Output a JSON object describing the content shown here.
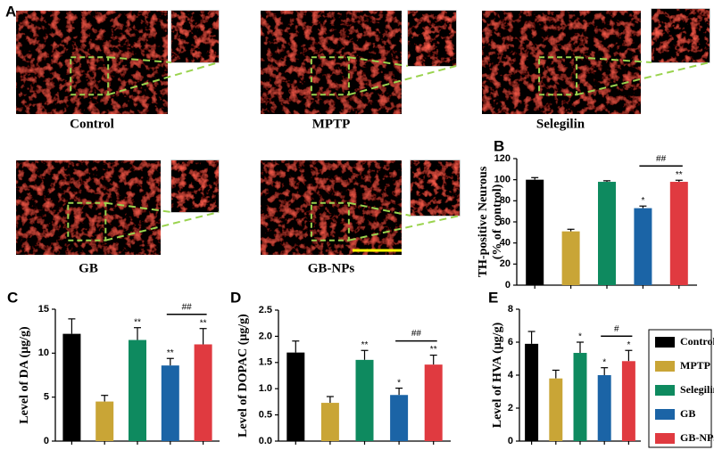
{
  "images": {
    "label": "A",
    "captions": [
      "Control",
      "MPTP",
      "Selegilin",
      "GB",
      "GB-NPs"
    ]
  },
  "legend": [
    {
      "name": "Control",
      "color": "#000000"
    },
    {
      "name": "MPTP",
      "color": "#c9a536"
    },
    {
      "name": "Selegilin",
      "color": "#0e8a5f"
    },
    {
      "name": "GB",
      "color": "#1b64a6"
    },
    {
      "name": "GB-NPs",
      "color": "#e03a40"
    }
  ],
  "chart_data": [
    {
      "type": "bar",
      "label": "B",
      "ylabel": [
        "TH-positive Neurous",
        "(% of control)"
      ],
      "values": [
        100,
        51,
        98,
        73,
        98
      ],
      "errors": [
        2,
        2,
        1,
        2,
        1.5
      ],
      "stars": [
        null,
        null,
        null,
        "*",
        "**"
      ],
      "bracket_label": "##",
      "ylim": [
        0,
        120
      ],
      "yticks": [
        0,
        20,
        40,
        60,
        80,
        100,
        120
      ]
    },
    {
      "type": "bar",
      "label": "C",
      "ylabel": [
        "Level of DA (μg/g)"
      ],
      "values": [
        12.2,
        4.5,
        11.5,
        8.6,
        11.0
      ],
      "errors": [
        1.7,
        0.7,
        1.4,
        0.8,
        1.8
      ],
      "stars": [
        null,
        null,
        "**",
        "**",
        "**"
      ],
      "bracket_label": "##",
      "ylim": [
        0,
        15
      ],
      "yticks": [
        0,
        5,
        10,
        15
      ]
    },
    {
      "type": "bar",
      "label": "D",
      "ylabel": [
        "Level of DOPAC (μg/g)"
      ],
      "values": [
        1.69,
        0.73,
        1.55,
        0.88,
        1.46
      ],
      "errors": [
        0.22,
        0.12,
        0.18,
        0.13,
        0.18
      ],
      "stars": [
        null,
        null,
        "**",
        "*",
        "**"
      ],
      "bracket_label": "##",
      "ylim": [
        0,
        2.5
      ],
      "yticks": [
        {
          "value": 0,
          "label": "0.0"
        },
        0.5,
        {
          "value": 1,
          "label": "1.0"
        },
        1.5,
        {
          "value": 2,
          "label": "2.0"
        },
        2.5
      ]
    },
    {
      "type": "bar",
      "label": "E",
      "ylabel": [
        "Level of HVA (μg/g)"
      ],
      "values": [
        5.9,
        3.8,
        5.35,
        4.0,
        4.85
      ],
      "errors": [
        0.75,
        0.5,
        0.65,
        0.45,
        0.65
      ],
      "stars": [
        null,
        null,
        "*",
        "*",
        "*"
      ],
      "bracket_label": "#",
      "ylim": [
        0,
        8
      ],
      "yticks": [
        0,
        2,
        4,
        6,
        8
      ]
    }
  ]
}
